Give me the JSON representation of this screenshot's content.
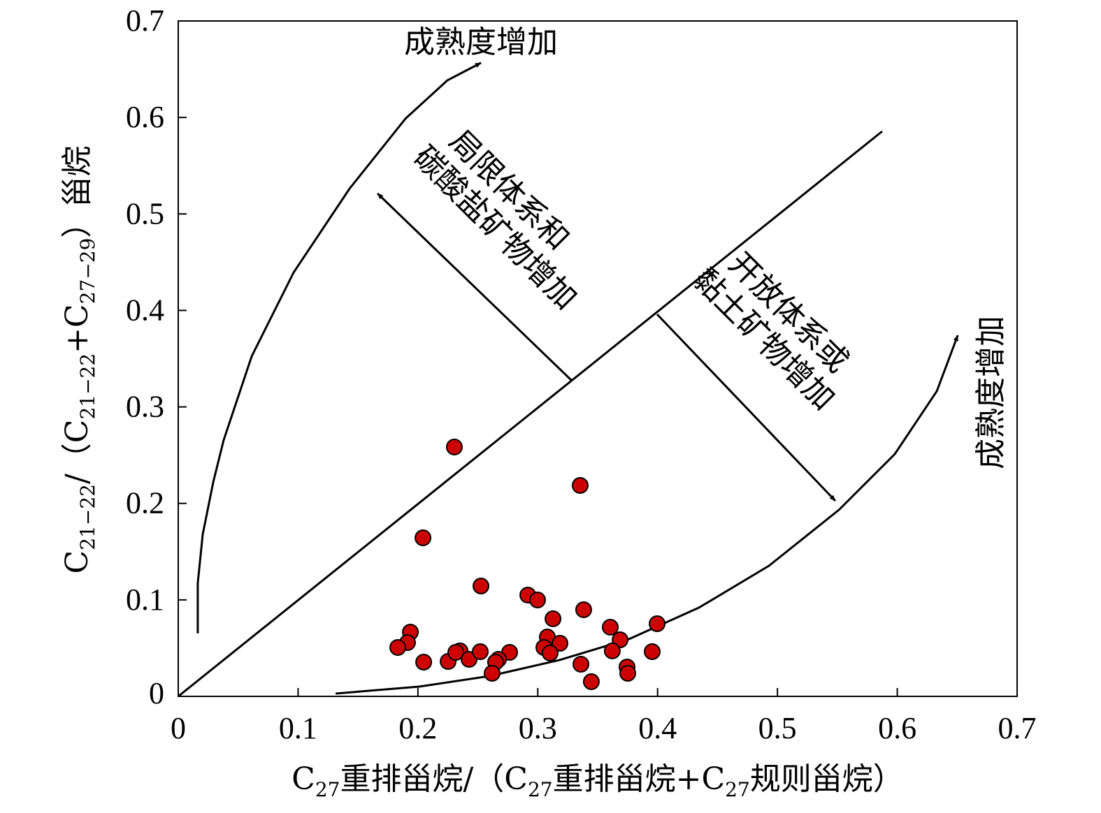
{
  "chart_data": {
    "type": "scatter",
    "title": "",
    "xlabel": {
      "main": "C",
      "sub1": "27",
      "mid1": "重排甾烷/（C",
      "sub2": "27",
      "mid2": "重排甾烷+C",
      "sub3": "27",
      "end": "规则甾烷）"
    },
    "ylabel": {
      "main": "C",
      "sub1": "21−22",
      "mid1": "/（C",
      "sub2": "21−22",
      "mid2": "+C",
      "sub3": "27−29",
      "end": "）甾烷"
    },
    "xlim": [
      0,
      0.7
    ],
    "ylim": [
      0,
      0.7
    ],
    "xticks": [
      "0",
      "0.1",
      "0.2",
      "0.3",
      "0.4",
      "0.5",
      "0.6",
      "0.7"
    ],
    "yticks": [
      "0",
      "0.1",
      "0.2",
      "0.3",
      "0.4",
      "0.5",
      "0.6",
      "0.7"
    ],
    "grid": false,
    "marker_color": "#cc0000",
    "points": [
      [
        0.2304,
        0.2584
      ],
      [
        0.3354,
        0.2186
      ],
      [
        0.2042,
        0.1643
      ],
      [
        0.2526,
        0.1144
      ],
      [
        0.2917,
        0.105
      ],
      [
        0.2998,
        0.0999
      ],
      [
        0.3383,
        0.0898
      ],
      [
        0.3127,
        0.0804
      ],
      [
        0.1937,
        0.0666
      ],
      [
        0.1913,
        0.0557
      ],
      [
        0.1832,
        0.0507
      ],
      [
        0.3996,
        0.0753
      ],
      [
        0.3605,
        0.0717
      ],
      [
        0.3687,
        0.0586
      ],
      [
        0.308,
        0.0615
      ],
      [
        0.3185,
        0.055
      ],
      [
        0.3051,
        0.0507
      ],
      [
        0.3103,
        0.0449
      ],
      [
        0.3622,
        0.0471
      ],
      [
        0.3955,
        0.0463
      ],
      [
        0.2048,
        0.0355
      ],
      [
        0.2252,
        0.0362
      ],
      [
        0.2351,
        0.0471
      ],
      [
        0.2316,
        0.0456
      ],
      [
        0.2427,
        0.0384
      ],
      [
        0.252,
        0.0463
      ],
      [
        0.2765,
        0.0456
      ],
      [
        0.2672,
        0.0384
      ],
      [
        0.2648,
        0.0355
      ],
      [
        0.2619,
        0.0239
      ],
      [
        0.336,
        0.0333
      ],
      [
        0.3745,
        0.0304
      ],
      [
        0.3751,
        0.0239
      ],
      [
        0.3447,
        0.0152
      ]
    ],
    "lines": {
      "diagonal": [
        [
          0,
          0
        ],
        [
          0.5874,
          0.5856
        ]
      ],
      "arrow_up_left": [
        [
          0.3284,
          0.3272
        ],
        [
          0.1663,
          0.5212
        ]
      ],
      "arrow_down_right": [
        [
          0.3996,
          0.396
        ],
        [
          0.5483,
          0.2027
        ]
      ],
      "curve_left": [
        [
          0.0163,
          0.0652
        ],
        [
          0.0163,
          0.1173
        ],
        [
          0.0204,
          0.1679
        ],
        [
          0.0292,
          0.2222
        ],
        [
          0.0379,
          0.2657
        ],
        [
          0.0613,
          0.3525
        ],
        [
          0.0963,
          0.4394
        ],
        [
          0.143,
          0.5263
        ],
        [
          0.1896,
          0.5987
        ],
        [
          0.2246,
          0.6385
        ],
        [
          0.2526,
          0.6566
        ]
      ],
      "curve_right": [
        [
          0.1313,
          0.0029
        ],
        [
          0.2013,
          0.0101
        ],
        [
          0.2596,
          0.021
        ],
        [
          0.318,
          0.0376
        ],
        [
          0.3763,
          0.0594
        ],
        [
          0.4346,
          0.092
        ],
        [
          0.493,
          0.1354
        ],
        [
          0.5513,
          0.1933
        ],
        [
          0.598,
          0.2512
        ],
        [
          0.633,
          0.3163
        ],
        [
          0.6505,
          0.3742
        ]
      ]
    },
    "annotations": {
      "maturity_top": "成熟度增加",
      "maturity_right": "成熟度增加",
      "closed_line1": "局限体系和",
      "closed_line2": "碳酸盐矿物增加",
      "open_line1": "开放体系或",
      "open_line2": "黏土矿物增加"
    }
  }
}
